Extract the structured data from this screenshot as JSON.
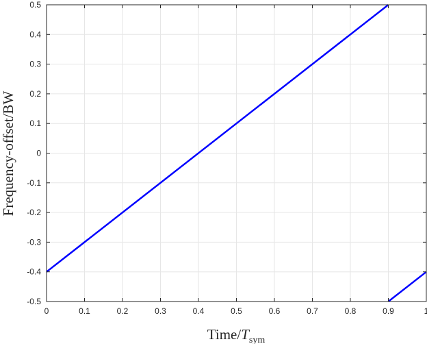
{
  "chart_data": {
    "type": "line",
    "xlabel": {
      "prefix": "Time/",
      "var": "T",
      "sub": "sym"
    },
    "ylabel": "Frequency-offset/BW",
    "xlim": [
      0,
      1
    ],
    "ylim": [
      -0.5,
      0.5
    ],
    "x_ticks": [
      0,
      0.1,
      0.2,
      0.3,
      0.4,
      0.5,
      0.6,
      0.7,
      0.8,
      0.9,
      1
    ],
    "x_tick_labels": [
      "0",
      "0.1",
      "0.2",
      "0.3",
      "0.4",
      "0.5",
      "0.6",
      "0.7",
      "0.8",
      "0.9",
      "1"
    ],
    "y_ticks": [
      -0.5,
      -0.4,
      -0.3,
      -0.2,
      -0.1,
      0,
      0.1,
      0.2,
      0.3,
      0.4,
      0.5
    ],
    "y_tick_labels": [
      "-0.5",
      "-0.4",
      "-0.3",
      "-0.2",
      "-0.1",
      "0",
      "0.1",
      "0.2",
      "0.3",
      "0.4",
      "0.5"
    ],
    "grid": true,
    "series": [
      {
        "color": "#0000ff",
        "segments": [
          [
            [
              0,
              -0.4
            ],
            [
              0.9,
              0.5
            ]
          ],
          [
            [
              0.9,
              -0.5
            ],
            [
              1,
              -0.4
            ]
          ]
        ]
      }
    ]
  }
}
